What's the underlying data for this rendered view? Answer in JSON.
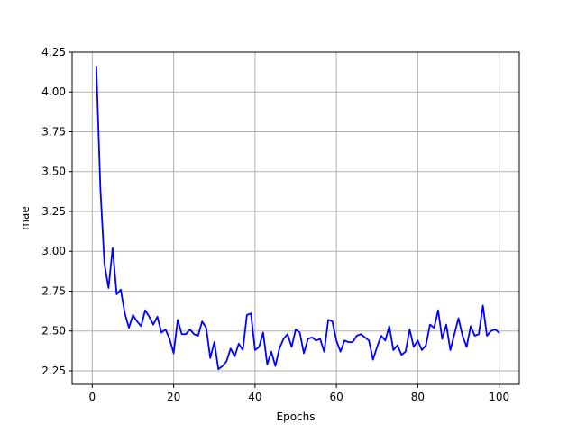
{
  "chart_data": {
    "type": "line",
    "title": "",
    "xlabel": "Epochs",
    "ylabel": "mae",
    "xlim": [
      -4.95,
      104.95
    ],
    "ylim": [
      2.165,
      4.25
    ],
    "xticks": [
      0,
      20,
      40,
      60,
      80,
      100
    ],
    "xtick_labels": [
      "0",
      "20",
      "40",
      "60",
      "80",
      "100"
    ],
    "yticks": [
      2.25,
      2.5,
      2.75,
      3.0,
      3.25,
      3.5,
      3.75,
      4.0,
      4.25
    ],
    "ytick_labels": [
      "2.25",
      "2.50",
      "2.75",
      "3.00",
      "3.25",
      "3.50",
      "3.75",
      "4.00",
      "4.25"
    ],
    "grid": true,
    "legend": "none",
    "series": [
      {
        "color": "#0000ff",
        "x": [
          1,
          2,
          3,
          4,
          5,
          6,
          7,
          8,
          9,
          10,
          11,
          12,
          13,
          14,
          15,
          16,
          17,
          18,
          19,
          20,
          21,
          22,
          23,
          24,
          25,
          26,
          27,
          28,
          29,
          30,
          31,
          32,
          33,
          34,
          35,
          36,
          37,
          38,
          39,
          40,
          41,
          42,
          43,
          44,
          45,
          46,
          47,
          48,
          49,
          50,
          51,
          52,
          53,
          54,
          55,
          56,
          57,
          58,
          59,
          60,
          61,
          62,
          63,
          64,
          65,
          66,
          67,
          68,
          69,
          70,
          71,
          72,
          73,
          74,
          75,
          76,
          77,
          78,
          79,
          80,
          81,
          82,
          83,
          84,
          85,
          86,
          87,
          88,
          89,
          90,
          91,
          92,
          93,
          94,
          95,
          96,
          97,
          98,
          99,
          100
        ],
        "values": [
          4.16,
          3.39,
          2.92,
          2.77,
          3.02,
          2.73,
          2.76,
          2.61,
          2.52,
          2.6,
          2.56,
          2.53,
          2.63,
          2.59,
          2.54,
          2.59,
          2.49,
          2.51,
          2.45,
          2.36,
          2.57,
          2.48,
          2.48,
          2.51,
          2.48,
          2.47,
          2.56,
          2.52,
          2.33,
          2.43,
          2.26,
          2.28,
          2.31,
          2.39,
          2.34,
          2.42,
          2.38,
          2.6,
          2.61,
          2.38,
          2.4,
          2.49,
          2.29,
          2.37,
          2.28,
          2.39,
          2.45,
          2.48,
          2.4,
          2.51,
          2.49,
          2.36,
          2.45,
          2.46,
          2.44,
          2.45,
          2.37,
          2.57,
          2.56,
          2.44,
          2.37,
          2.44,
          2.43,
          2.43,
          2.47,
          2.48,
          2.46,
          2.44,
          2.32,
          2.4,
          2.47,
          2.44,
          2.53,
          2.38,
          2.41,
          2.35,
          2.37,
          2.51,
          2.4,
          2.44,
          2.38,
          2.41,
          2.54,
          2.52,
          2.63,
          2.45,
          2.54,
          2.38,
          2.48,
          2.58,
          2.47,
          2.4,
          2.53,
          2.47,
          2.48,
          2.66,
          2.47,
          2.5,
          2.51,
          2.49
        ]
      }
    ]
  }
}
